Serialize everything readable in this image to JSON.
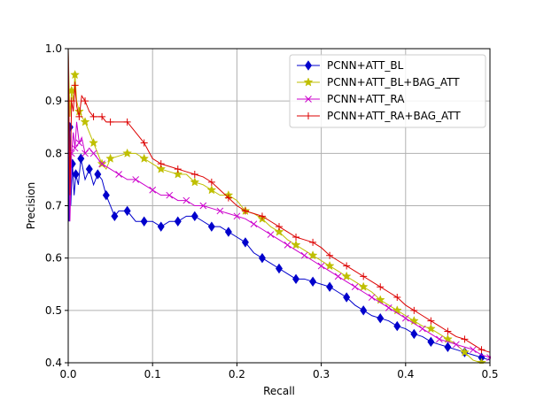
{
  "chart_data": {
    "type": "line",
    "title": "",
    "xlabel": "Recall",
    "ylabel": "Precision",
    "xlim": [
      0.0,
      0.5
    ],
    "ylim": [
      0.4,
      1.0
    ],
    "xticks": [
      "0.0",
      "0.1",
      "0.2",
      "0.3",
      "0.4",
      "0.5"
    ],
    "yticks": [
      "0.4",
      "0.5",
      "0.6",
      "0.7",
      "0.8",
      "0.9",
      "1.0"
    ],
    "grid": true,
    "legend_position": "top-right",
    "series": [
      {
        "name": "PCNN+ATT_BL",
        "color": "#0000cc",
        "marker": "diamond",
        "x": [
          0.0,
          0.001,
          0.002,
          0.003,
          0.005,
          0.007,
          0.009,
          0.012,
          0.015,
          0.02,
          0.025,
          0.03,
          0.035,
          0.04,
          0.045,
          0.05,
          0.055,
          0.06,
          0.07,
          0.08,
          0.09,
          0.1,
          0.11,
          0.12,
          0.13,
          0.14,
          0.15,
          0.16,
          0.17,
          0.18,
          0.19,
          0.2,
          0.21,
          0.22,
          0.23,
          0.24,
          0.25,
          0.26,
          0.27,
          0.28,
          0.29,
          0.3,
          0.31,
          0.32,
          0.33,
          0.34,
          0.35,
          0.36,
          0.37,
          0.38,
          0.39,
          0.4,
          0.41,
          0.42,
          0.43,
          0.44,
          0.45,
          0.46,
          0.47,
          0.48,
          0.49,
          0.5
        ],
        "y": [
          1.0,
          0.67,
          0.85,
          0.7,
          0.78,
          0.72,
          0.76,
          0.74,
          0.79,
          0.75,
          0.77,
          0.74,
          0.76,
          0.75,
          0.72,
          0.7,
          0.68,
          0.69,
          0.69,
          0.67,
          0.67,
          0.67,
          0.66,
          0.67,
          0.67,
          0.68,
          0.68,
          0.67,
          0.66,
          0.66,
          0.65,
          0.64,
          0.63,
          0.61,
          0.6,
          0.59,
          0.58,
          0.57,
          0.56,
          0.56,
          0.555,
          0.55,
          0.545,
          0.535,
          0.525,
          0.51,
          0.5,
          0.49,
          0.485,
          0.48,
          0.47,
          0.465,
          0.455,
          0.45,
          0.44,
          0.435,
          0.43,
          0.425,
          0.42,
          0.415,
          0.41,
          0.405
        ]
      },
      {
        "name": "PCNN+ATT_BL+BAG_ATT",
        "color": "#bfbf00",
        "marker": "star",
        "x": [
          0.0,
          0.002,
          0.004,
          0.006,
          0.008,
          0.01,
          0.013,
          0.016,
          0.02,
          0.025,
          0.03,
          0.035,
          0.04,
          0.045,
          0.05,
          0.06,
          0.07,
          0.08,
          0.09,
          0.1,
          0.11,
          0.12,
          0.13,
          0.14,
          0.15,
          0.16,
          0.17,
          0.18,
          0.19,
          0.2,
          0.21,
          0.22,
          0.23,
          0.24,
          0.25,
          0.26,
          0.27,
          0.28,
          0.29,
          0.3,
          0.31,
          0.32,
          0.33,
          0.34,
          0.35,
          0.36,
          0.37,
          0.38,
          0.39,
          0.4,
          0.41,
          0.42,
          0.43,
          0.44,
          0.45,
          0.46,
          0.47,
          0.48,
          0.49,
          0.5
        ],
        "y": [
          1.0,
          0.87,
          0.92,
          0.9,
          0.95,
          0.9,
          0.88,
          0.87,
          0.86,
          0.84,
          0.82,
          0.8,
          0.78,
          0.77,
          0.79,
          0.795,
          0.8,
          0.8,
          0.79,
          0.78,
          0.77,
          0.765,
          0.76,
          0.76,
          0.745,
          0.74,
          0.73,
          0.72,
          0.72,
          0.71,
          0.69,
          0.685,
          0.675,
          0.66,
          0.65,
          0.635,
          0.625,
          0.615,
          0.605,
          0.595,
          0.585,
          0.575,
          0.565,
          0.555,
          0.545,
          0.535,
          0.52,
          0.51,
          0.5,
          0.49,
          0.48,
          0.47,
          0.465,
          0.455,
          0.445,
          0.435,
          0.42,
          0.405,
          0.4,
          0.4
        ]
      },
      {
        "name": "PCNN+ATT_RA",
        "color": "#cc00cc",
        "marker": "x",
        "x": [
          0.0,
          0.002,
          0.004,
          0.006,
          0.008,
          0.01,
          0.013,
          0.016,
          0.02,
          0.025,
          0.03,
          0.035,
          0.04,
          0.05,
          0.06,
          0.07,
          0.08,
          0.09,
          0.1,
          0.11,
          0.12,
          0.13,
          0.14,
          0.15,
          0.16,
          0.17,
          0.18,
          0.19,
          0.2,
          0.21,
          0.22,
          0.23,
          0.24,
          0.25,
          0.26,
          0.27,
          0.28,
          0.29,
          0.3,
          0.31,
          0.32,
          0.33,
          0.34,
          0.35,
          0.36,
          0.37,
          0.38,
          0.39,
          0.4,
          0.41,
          0.42,
          0.43,
          0.44,
          0.45,
          0.46,
          0.47,
          0.48,
          0.49,
          0.5
        ],
        "y": [
          1.0,
          0.67,
          0.8,
          0.84,
          0.81,
          0.86,
          0.82,
          0.83,
          0.8,
          0.81,
          0.8,
          0.79,
          0.78,
          0.77,
          0.76,
          0.75,
          0.75,
          0.74,
          0.73,
          0.72,
          0.72,
          0.71,
          0.71,
          0.7,
          0.7,
          0.695,
          0.69,
          0.685,
          0.68,
          0.675,
          0.665,
          0.655,
          0.645,
          0.635,
          0.625,
          0.615,
          0.605,
          0.595,
          0.585,
          0.575,
          0.565,
          0.555,
          0.545,
          0.535,
          0.525,
          0.515,
          0.505,
          0.495,
          0.485,
          0.475,
          0.465,
          0.455,
          0.445,
          0.44,
          0.435,
          0.43,
          0.425,
          0.415,
          0.41
        ]
      },
      {
        "name": "PCNN+ATT_RA+BAG_ATT",
        "color": "#dd0000",
        "marker": "plus",
        "x": [
          0.0,
          0.002,
          0.004,
          0.006,
          0.008,
          0.01,
          0.013,
          0.016,
          0.02,
          0.025,
          0.03,
          0.035,
          0.04,
          0.045,
          0.05,
          0.06,
          0.07,
          0.08,
          0.09,
          0.1,
          0.11,
          0.12,
          0.13,
          0.14,
          0.15,
          0.16,
          0.17,
          0.18,
          0.19,
          0.2,
          0.21,
          0.22,
          0.23,
          0.24,
          0.25,
          0.26,
          0.27,
          0.28,
          0.29,
          0.3,
          0.31,
          0.32,
          0.33,
          0.34,
          0.35,
          0.36,
          0.37,
          0.38,
          0.39,
          0.4,
          0.41,
          0.42,
          0.43,
          0.44,
          0.45,
          0.46,
          0.47,
          0.48,
          0.49,
          0.5
        ],
        "y": [
          1.0,
          0.72,
          0.9,
          0.88,
          0.93,
          0.89,
          0.87,
          0.91,
          0.9,
          0.88,
          0.87,
          0.87,
          0.87,
          0.86,
          0.86,
          0.86,
          0.86,
          0.84,
          0.82,
          0.79,
          0.78,
          0.775,
          0.77,
          0.765,
          0.76,
          0.755,
          0.745,
          0.73,
          0.715,
          0.7,
          0.69,
          0.685,
          0.68,
          0.67,
          0.66,
          0.65,
          0.64,
          0.635,
          0.63,
          0.62,
          0.605,
          0.595,
          0.585,
          0.575,
          0.565,
          0.555,
          0.545,
          0.535,
          0.525,
          0.51,
          0.5,
          0.49,
          0.48,
          0.47,
          0.46,
          0.45,
          0.445,
          0.435,
          0.425,
          0.42
        ]
      }
    ]
  }
}
